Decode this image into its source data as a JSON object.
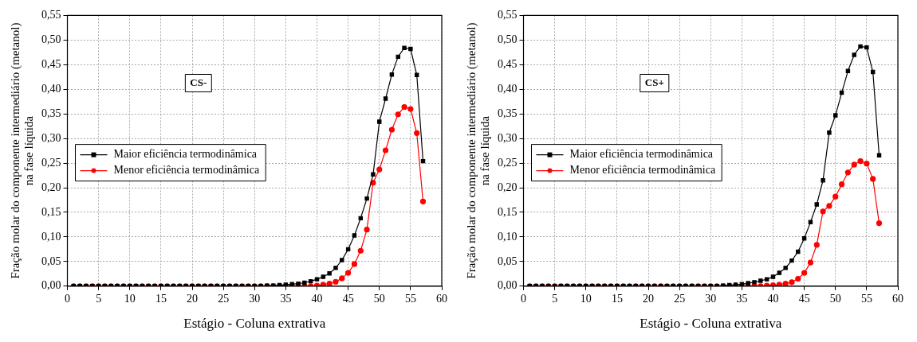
{
  "chart_data": [
    {
      "type": "line",
      "xlabel": "Estágio - Coluna extrativa",
      "ylabel": "Fração molar do componente intermediário (metanol)\nna fase líquida",
      "annotations": [
        "CS-"
      ],
      "legend": "center left",
      "grid": true,
      "line_style": "solid",
      "x": [
        1,
        2,
        3,
        4,
        5,
        6,
        7,
        8,
        9,
        10,
        11,
        12,
        13,
        14,
        15,
        16,
        17,
        18,
        19,
        20,
        21,
        22,
        23,
        24,
        25,
        26,
        27,
        28,
        29,
        30,
        31,
        32,
        33,
        34,
        35,
        36,
        37,
        38,
        39,
        40,
        41,
        42,
        43,
        44,
        45,
        46,
        47,
        48,
        49,
        50,
        51,
        52,
        53,
        54,
        55,
        56,
        57
      ],
      "xlim": [
        0,
        60
      ],
      "xticks": [
        0,
        5,
        10,
        15,
        20,
        25,
        30,
        35,
        40,
        45,
        50,
        55,
        60
      ],
      "ylim": [
        0,
        0.55
      ],
      "yticks": [
        {
          "value": 0,
          "label": "0,00"
        },
        {
          "value": 0.05,
          "label": "0,05"
        },
        {
          "value": 0.1,
          "label": "0,10"
        },
        {
          "value": 0.15,
          "label": "0,15"
        },
        {
          "value": 0.2,
          "label": "0,20"
        },
        {
          "value": 0.25,
          "label": "0,25"
        },
        {
          "value": 0.3,
          "label": "0,30"
        },
        {
          "value": 0.35,
          "label": "0,35"
        },
        {
          "value": 0.4,
          "label": "0,40"
        },
        {
          "value": 0.45,
          "label": "0,45"
        },
        {
          "value": 0.5,
          "label": "0,50"
        },
        {
          "value": 0.55,
          "label": "0,55"
        }
      ],
      "series": [
        {
          "name": "Maior eficiência termodinâmica",
          "color": "#000000",
          "marker": "square",
          "values": [
            0,
            0,
            0,
            0,
            0,
            0,
            0,
            0,
            0,
            0,
            0,
            0,
            0,
            0,
            0,
            0,
            0,
            0,
            0,
            0,
            0,
            0,
            0,
            0,
            0,
            0,
            0,
            0,
            0,
            0,
            0,
            0.001,
            0.001,
            0.002,
            0.003,
            0.004,
            0.005,
            0.007,
            0.01,
            0.014,
            0.019,
            0.026,
            0.037,
            0.053,
            0.075,
            0.103,
            0.138,
            0.178,
            0.227,
            0.334,
            0.381,
            0.43,
            0.466,
            0.484,
            0.482,
            0.429,
            0.254
          ]
        },
        {
          "name": "Menor eficiência termodinâmica",
          "color": "#ff0000",
          "marker": "circle",
          "values": [
            0,
            0,
            0,
            0,
            0,
            0,
            0,
            0,
            0,
            0,
            0,
            0,
            0,
            0,
            0,
            0,
            0,
            0,
            0,
            0,
            0,
            0,
            0,
            0,
            0,
            0,
            0,
            0,
            0,
            0,
            0,
            0,
            0,
            0,
            0,
            0,
            0,
            0,
            0,
            0.001,
            0.003,
            0.005,
            0.009,
            0.016,
            0.027,
            0.045,
            0.072,
            0.115,
            0.21,
            0.237,
            0.276,
            0.318,
            0.349,
            0.364,
            0.36,
            0.311,
            0.172
          ]
        }
      ]
    },
    {
      "type": "line",
      "xlabel": "Estágio - Coluna extrativa",
      "ylabel": "Fração molar do componente intermediário (metanol)\nna fase líquida",
      "annotations": [
        "CS+"
      ],
      "legend": "center left",
      "grid": true,
      "line_style": "solid",
      "x": [
        1,
        2,
        3,
        4,
        5,
        6,
        7,
        8,
        9,
        10,
        11,
        12,
        13,
        14,
        15,
        16,
        17,
        18,
        19,
        20,
        21,
        22,
        23,
        24,
        25,
        26,
        27,
        28,
        29,
        30,
        31,
        32,
        33,
        34,
        35,
        36,
        37,
        38,
        39,
        40,
        41,
        42,
        43,
        44,
        45,
        46,
        47,
        48,
        49,
        50,
        51,
        52,
        53,
        54,
        55,
        56,
        57
      ],
      "xlim": [
        0,
        60
      ],
      "xticks": [
        0,
        5,
        10,
        15,
        20,
        25,
        30,
        35,
        40,
        45,
        50,
        55,
        60
      ],
      "ylim": [
        0,
        0.55
      ],
      "yticks": [
        {
          "value": 0,
          "label": "0,00"
        },
        {
          "value": 0.05,
          "label": "0,05"
        },
        {
          "value": 0.1,
          "label": "0,10"
        },
        {
          "value": 0.15,
          "label": "0,15"
        },
        {
          "value": 0.2,
          "label": "0,20"
        },
        {
          "value": 0.25,
          "label": "0,25"
        },
        {
          "value": 0.3,
          "label": "0,30"
        },
        {
          "value": 0.35,
          "label": "0,35"
        },
        {
          "value": 0.4,
          "label": "0,40"
        },
        {
          "value": 0.45,
          "label": "0,45"
        },
        {
          "value": 0.5,
          "label": "0,50"
        },
        {
          "value": 0.55,
          "label": "0,55"
        }
      ],
      "series": [
        {
          "name": "Maior eficiência termodinâmica",
          "color": "#000000",
          "marker": "square",
          "values": [
            0,
            0,
            0,
            0,
            0,
            0,
            0,
            0,
            0,
            0,
            0,
            0,
            0,
            0,
            0,
            0,
            0,
            0,
            0,
            0,
            0,
            0,
            0,
            0,
            0,
            0,
            0,
            0,
            0,
            0,
            0,
            0.001,
            0.002,
            0.003,
            0.004,
            0.006,
            0.008,
            0.011,
            0.014,
            0.019,
            0.027,
            0.037,
            0.052,
            0.07,
            0.097,
            0.13,
            0.166,
            0.215,
            0.312,
            0.347,
            0.393,
            0.437,
            0.47,
            0.487,
            0.485,
            0.435,
            0.266
          ]
        },
        {
          "name": "Menor eficiência termodinâmica",
          "color": "#ff0000",
          "marker": "circle",
          "values": [
            0,
            0,
            0,
            0,
            0,
            0,
            0,
            0,
            0,
            0,
            0,
            0,
            0,
            0,
            0,
            0,
            0,
            0,
            0,
            0,
            0,
            0,
            0,
            0,
            0,
            0,
            0,
            0,
            0,
            0,
            0,
            0,
            0,
            0,
            0,
            0,
            0,
            0,
            0.001,
            0.002,
            0.003,
            0.005,
            0.008,
            0.015,
            0.027,
            0.048,
            0.084,
            0.152,
            0.163,
            0.182,
            0.207,
            0.231,
            0.247,
            0.254,
            0.249,
            0.218,
            0.128
          ]
        }
      ]
    }
  ]
}
